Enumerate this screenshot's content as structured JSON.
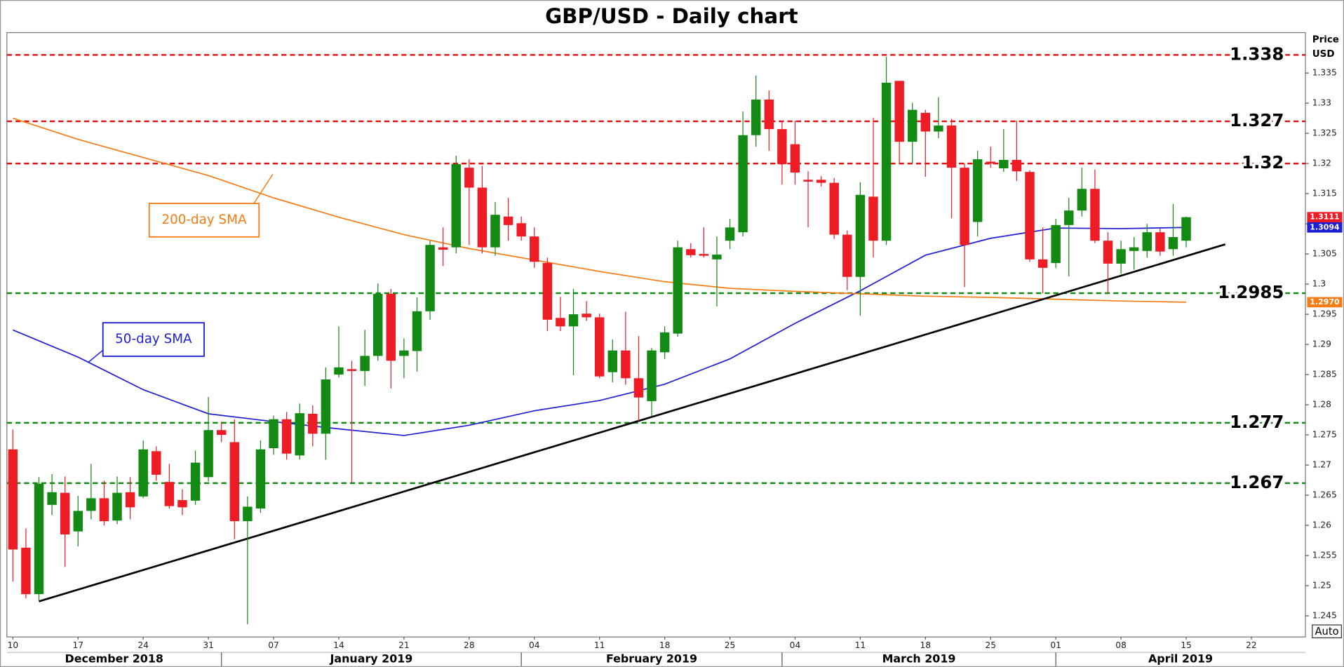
{
  "chart_data": {
    "type": "candlestick",
    "title": "GBP/USD - Daily chart",
    "y_axis_title": [
      "Price",
      "USD"
    ],
    "up_color": "#138a13",
    "down_color": "#ee1c24",
    "x": [
      "2018-12-10",
      "2018-12-11",
      "2018-12-12",
      "2018-12-13",
      "2018-12-14",
      "2018-12-17",
      "2018-12-18",
      "2018-12-19",
      "2018-12-20",
      "2018-12-21",
      "2018-12-24",
      "2018-12-25",
      "2018-12-26",
      "2018-12-27",
      "2018-12-28",
      "2018-12-31",
      "2019-01-01",
      "2019-01-02",
      "2019-01-03",
      "2019-01-04",
      "2019-01-07",
      "2019-01-08",
      "2019-01-09",
      "2019-01-10",
      "2019-01-11",
      "2019-01-14",
      "2019-01-15",
      "2019-01-16",
      "2019-01-17",
      "2019-01-18",
      "2019-01-21",
      "2019-01-22",
      "2019-01-23",
      "2019-01-24",
      "2019-01-25",
      "2019-01-28",
      "2019-01-29",
      "2019-01-30",
      "2019-01-31",
      "2019-02-01",
      "2019-02-04",
      "2019-02-05",
      "2019-02-06",
      "2019-02-07",
      "2019-02-08",
      "2019-02-11",
      "2019-02-12",
      "2019-02-13",
      "2019-02-14",
      "2019-02-15",
      "2019-02-18",
      "2019-02-19",
      "2019-02-20",
      "2019-02-21",
      "2019-02-22",
      "2019-02-25",
      "2019-02-26",
      "2019-02-27",
      "2019-02-28",
      "2019-03-01",
      "2019-03-04",
      "2019-03-05",
      "2019-03-06",
      "2019-03-07",
      "2019-03-08",
      "2019-03-11",
      "2019-03-12",
      "2019-03-13",
      "2019-03-14",
      "2019-03-15",
      "2019-03-18",
      "2019-03-19",
      "2019-03-20",
      "2019-03-21",
      "2019-03-22",
      "2019-03-25",
      "2019-03-26",
      "2019-03-27",
      "2019-03-28",
      "2019-03-29",
      "2019-04-01",
      "2019-04-02",
      "2019-04-03",
      "2019-04-04",
      "2019-04-05",
      "2019-04-08",
      "2019-04-09",
      "2019-04-10",
      "2019-04-11",
      "2019-04-12",
      "2019-04-15"
    ],
    "open": [
      1.2726,
      1.2563,
      1.2486,
      1.2634,
      1.2654,
      1.259,
      1.2624,
      1.2645,
      1.2608,
      1.2655,
      1.2648,
      1.2723,
      1.2672,
      1.2642,
      1.2641,
      1.268,
      1.2758,
      1.2738,
      1.2607,
      1.2628,
      1.2728,
      1.2776,
      1.2716,
      1.2785,
      1.2752,
      1.285,
      1.2859,
      1.2856,
      1.2881,
      1.2984,
      1.2881,
      1.2889,
      1.2955,
      1.3061,
      1.3061,
      1.3193,
      1.316,
      1.3061,
      1.3112,
      1.3101,
      1.3079,
      1.3035,
      1.2944,
      1.293,
      1.2951,
      1.2945,
      1.2854,
      1.289,
      1.2844,
      1.2806,
      1.2887,
      1.2918,
      1.3058,
      1.305,
      1.3041,
      1.3072,
      1.3086,
      1.3247,
      1.3306,
      1.3257,
      1.3232,
      1.3173,
      1.3173,
      1.3168,
      1.3082,
      1.3012,
      1.3145,
      1.3072,
      1.3337,
      1.3236,
      1.3284,
      1.3253,
      1.3263,
      1.3193,
      1.3103,
      1.3203,
      1.3192,
      1.3206,
      1.3186,
      1.3041,
      1.3035,
      1.3098,
      1.3122,
      1.3158,
      1.3072,
      1.3034,
      1.3055,
      1.3055,
      1.3086,
      1.3058,
      1.3072
    ],
    "high": [
      1.2759,
      1.2595,
      1.268,
      1.2685,
      1.2681,
      1.2649,
      1.2702,
      1.2674,
      1.2681,
      1.268,
      1.2741,
      1.2731,
      1.2702,
      1.266,
      1.2724,
      1.2813,
      1.2772,
      1.2776,
      1.2648,
      1.2741,
      1.2782,
      1.2788,
      1.2802,
      1.2799,
      1.2862,
      1.293,
      1.2873,
      1.2924,
      1.3001,
      1.2992,
      1.291,
      1.2978,
      1.3072,
      1.3094,
      1.3213,
      1.3207,
      1.3196,
      1.3136,
      1.3143,
      1.3112,
      1.3094,
      1.3044,
      1.2979,
      1.2992,
      1.2972,
      1.2951,
      1.2908,
      1.2954,
      1.2914,
      1.2894,
      1.293,
      1.3072,
      1.3068,
      1.3094,
      1.3079,
      1.3108,
      1.3286,
      1.3346,
      1.3321,
      1.3271,
      1.3271,
      1.3187,
      1.3179,
      1.3176,
      1.3089,
      1.3169,
      1.3276,
      1.3377,
      1.3337,
      1.3301,
      1.3289,
      1.331,
      1.3274,
      1.32,
      1.3221,
      1.3228,
      1.3257,
      1.3271,
      1.3189,
      1.3094,
      1.3108,
      1.3143,
      1.3193,
      1.319,
      1.3086,
      1.3072,
      1.3078,
      1.31,
      1.3092,
      1.3133,
      1.3112
    ],
    "low": [
      1.2507,
      1.2479,
      1.2474,
      1.2617,
      1.2531,
      1.2565,
      1.261,
      1.26,
      1.2602,
      1.261,
      1.2645,
      1.2674,
      1.2628,
      1.2617,
      1.2634,
      1.2673,
      1.2738,
      1.2577,
      1.2436,
      1.2621,
      1.2717,
      1.2709,
      1.2709,
      1.2731,
      1.2709,
      1.2845,
      1.2671,
      1.2831,
      1.2873,
      1.2827,
      1.2844,
      1.2855,
      1.2941,
      1.303,
      1.3051,
      1.3065,
      1.3051,
      1.3047,
      1.3072,
      1.3072,
      1.3027,
      1.2922,
      1.2922,
      1.2849,
      1.2939,
      1.2844,
      1.2837,
      1.2833,
      1.2773,
      1.2781,
      1.2876,
      1.2913,
      1.3044,
      1.3044,
      1.2963,
      1.3058,
      1.3079,
      1.3228,
      1.3221,
      1.3165,
      1.3165,
      1.3094,
      1.3162,
      1.3075,
      1.299,
      1.2948,
      1.3044,
      1.3065,
      1.32,
      1.32,
      1.3178,
      1.3242,
      1.3109,
      1.2995,
      1.3079,
      1.3193,
      1.3186,
      1.3171,
      1.3037,
      1.2985,
      1.3027,
      1.3013,
      1.3112,
      1.3068,
      1.2985,
      1.3017,
      1.3024,
      1.3044,
      1.3047,
      1.3047,
      1.3061
    ],
    "close": [
      1.256,
      1.2486,
      1.2669,
      1.2655,
      1.2585,
      1.2624,
      1.2645,
      1.2607,
      1.2654,
      1.263,
      1.2726,
      1.2684,
      1.2632,
      1.263,
      1.2704,
      1.2758,
      1.275,
      1.2607,
      1.2631,
      1.2726,
      1.2776,
      1.2719,
      1.2786,
      1.2752,
      1.2842,
      1.2862,
      1.2856,
      1.2881,
      1.2984,
      1.2873,
      1.289,
      1.2955,
      1.3065,
      1.3057,
      1.3199,
      1.316,
      1.3061,
      1.3115,
      1.3098,
      1.3079,
      1.3037,
      1.2941,
      1.293,
      1.295,
      1.2945,
      1.2847,
      1.289,
      1.2844,
      1.2812,
      1.289,
      1.292,
      1.3061,
      1.3048,
      1.3047,
      1.3049,
      1.3094,
      1.3247,
      1.3306,
      1.3257,
      1.3199,
      1.3185,
      1.317,
      1.3168,
      1.3082,
      1.3012,
      1.3148,
      1.3072,
      1.3334,
      1.3236,
      1.3289,
      1.3253,
      1.3263,
      1.3193,
      1.3065,
      1.3207,
      1.32,
      1.3206,
      1.3187,
      1.3041,
      1.3027,
      1.3098,
      1.3122,
      1.3158,
      1.3072,
      1.3034,
      1.3058,
      1.3061,
      1.3086,
      1.3054,
      1.3078,
      1.3111
    ],
    "series": [
      {
        "name": "50-day SMA",
        "color": "#1f1fd6",
        "x": [
          "2018-12-10",
          "2018-12-17",
          "2018-12-24",
          "2018-12-31",
          "2019-01-07",
          "2019-01-14",
          "2019-01-21",
          "2019-01-28",
          "2019-02-04",
          "2019-02-11",
          "2019-02-18",
          "2019-02-25",
          "2019-03-04",
          "2019-03-11",
          "2019-03-18",
          "2019-03-25",
          "2019-04-01",
          "2019-04-08",
          "2019-04-15"
        ],
        "values": [
          1.2924,
          1.2879,
          1.2825,
          1.2785,
          1.2772,
          1.276,
          1.2749,
          1.2766,
          1.279,
          1.2807,
          1.2834,
          1.2876,
          1.2935,
          1.2989,
          1.3048,
          1.3076,
          1.3093,
          1.3092,
          1.3094
        ]
      },
      {
        "name": "200-day SMA",
        "color": "#f57c14",
        "x": [
          "2018-12-10",
          "2018-12-17",
          "2018-12-24",
          "2018-12-31",
          "2019-01-07",
          "2019-01-14",
          "2019-01-21",
          "2019-01-28",
          "2019-02-04",
          "2019-02-11",
          "2019-02-18",
          "2019-02-25",
          "2019-03-04",
          "2019-03-11",
          "2019-03-18",
          "2019-03-25",
          "2019-04-01",
          "2019-04-08",
          "2019-04-15"
        ],
        "values": [
          1.3275,
          1.324,
          1.321,
          1.318,
          1.3143,
          1.3111,
          1.3082,
          1.3059,
          1.304,
          1.3021,
          1.3004,
          1.2993,
          1.2988,
          1.2984,
          1.298,
          1.2978,
          1.2975,
          1.2972,
          1.297
        ]
      }
    ],
    "levels": [
      {
        "value": 1.338,
        "color": "#e01010"
      },
      {
        "value": 1.327,
        "color": "#e01010"
      },
      {
        "value": 1.32,
        "color": "#e01010"
      },
      {
        "value": 1.2985,
        "color": "#138a13"
      },
      {
        "value": 1.277,
        "color": "#138a13"
      },
      {
        "value": 1.267,
        "color": "#138a13"
      }
    ],
    "trendline": {
      "x": [
        "2018-12-12",
        "2019-04-18"
      ],
      "values": [
        1.2474,
        1.3066
      ],
      "color": "#000000"
    },
    "price_tags": {
      "values": [
        1.3111,
        1.3094,
        1.297
      ],
      "value_labels": [
        "1.3111",
        "1.3094",
        "1.2970"
      ],
      "colors": [
        "#ee1c24",
        "#1f1fd6",
        "#f57c14"
      ]
    },
    "ylim": [
      1.2415,
      1.3417
    ],
    "yticks": [
      1.245,
      1.25,
      1.255,
      1.26,
      1.265,
      1.27,
      1.275,
      1.28,
      1.285,
      1.29,
      1.295,
      1.3,
      1.305,
      1.31,
      1.315,
      1.32,
      1.325,
      1.33,
      1.335
    ],
    "xticks": [
      {
        "value": "2018-12-10",
        "label": "10"
      },
      {
        "value": "2018-12-17",
        "label": "17"
      },
      {
        "value": "2018-12-24",
        "label": "24"
      },
      {
        "value": "2018-12-31",
        "label": "31"
      },
      {
        "value": "2019-01-07",
        "label": "07"
      },
      {
        "value": "2019-01-14",
        "label": "14"
      },
      {
        "value": "2019-01-21",
        "label": "21"
      },
      {
        "value": "2019-01-28",
        "label": "28"
      },
      {
        "value": "2019-02-04",
        "label": "04"
      },
      {
        "value": "2019-02-11",
        "label": "11"
      },
      {
        "value": "2019-02-18",
        "label": "18"
      },
      {
        "value": "2019-02-25",
        "label": "25"
      },
      {
        "value": "2019-03-04",
        "label": "04"
      },
      {
        "value": "2019-03-11",
        "label": "11"
      },
      {
        "value": "2019-03-18",
        "label": "18"
      },
      {
        "value": "2019-03-25",
        "label": "25"
      },
      {
        "value": "2019-04-01",
        "label": "01"
      },
      {
        "value": "2019-04-08",
        "label": "08"
      },
      {
        "value": "2019-04-15",
        "label": "15"
      },
      {
        "value": "2019-04-22",
        "label": "22"
      }
    ],
    "months": [
      {
        "value": "2018-12-01",
        "label": "December 2018"
      },
      {
        "value": "2019-01-01",
        "label": "January 2019"
      },
      {
        "value": "2019-02-01",
        "label": "February 2019"
      },
      {
        "value": "2019-03-01",
        "label": "March 2019"
      },
      {
        "value": "2019-04-01",
        "label": "April 2019"
      }
    ],
    "grid": false,
    "auto_button": "Auto"
  }
}
